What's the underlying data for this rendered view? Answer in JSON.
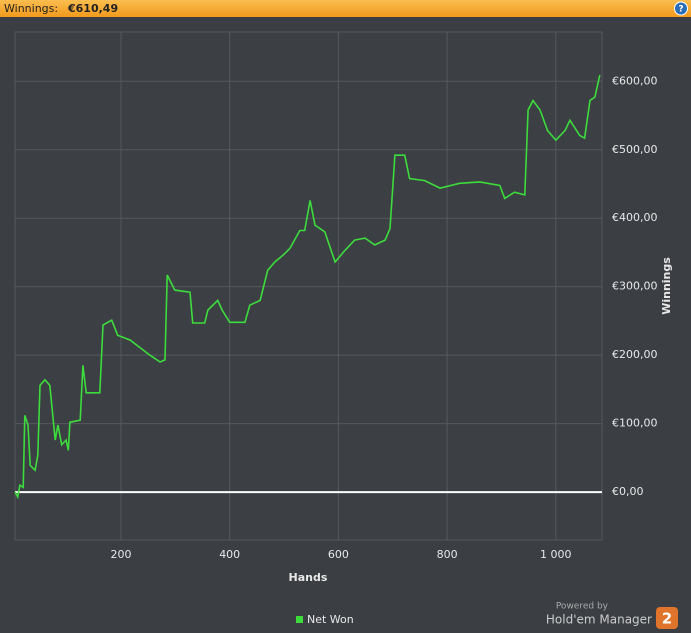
{
  "header": {
    "label": "Winnings:",
    "amount": "€610,49",
    "help_icon": "?"
  },
  "branding": {
    "powered_by": "Powered by",
    "product": "Hold'em Manager",
    "badge": "2"
  },
  "chart_data": {
    "type": "line",
    "x_label": "Hands",
    "y_label": "Winnings",
    "xlim": [
      5,
      1085
    ],
    "ylim": [
      -70,
      672
    ],
    "xticks": [
      200,
      400,
      600,
      800,
      {
        "value": 1000,
        "label": "1 000"
      }
    ],
    "yticks": [
      {
        "value": 0,
        "label": "€0,00"
      },
      {
        "value": 100,
        "label": "€100,00"
      },
      {
        "value": 200,
        "label": "€200,00"
      },
      {
        "value": 300,
        "label": "€300,00"
      },
      {
        "value": 400,
        "label": "€400,00"
      },
      {
        "value": 500,
        "label": "€500,00"
      },
      {
        "value": 600,
        "label": "€600,00"
      }
    ],
    "grid": true,
    "legend": "bottom",
    "x": [
      5,
      10,
      14,
      20,
      23,
      29,
      33,
      42,
      47,
      51,
      60,
      69,
      79,
      84,
      91,
      99,
      103,
      106,
      125,
      130,
      136,
      161,
      167,
      183,
      194,
      217,
      253,
      272,
      281,
      285,
      299,
      327,
      332,
      354,
      360,
      378,
      386,
      400,
      428,
      437,
      456,
      470,
      483,
      498,
      511,
      529,
      538,
      548,
      557,
      575,
      594,
      612,
      630,
      649,
      667,
      686,
      695,
      704,
      722,
      731,
      759,
      787,
      823,
      860,
      897,
      906,
      924,
      943,
      949,
      958,
      971,
      985,
      1000,
      1017,
      1026,
      1044,
      1053,
      1063,
      1072,
      1081
    ],
    "series": [
      {
        "name": "Net Won",
        "color": "#3ddc3d",
        "values": [
          0,
          -7,
          10,
          7,
          112,
          98,
          39,
          32,
          54,
          156,
          164,
          156,
          76,
          98,
          69,
          76,
          61,
          102,
          105,
          185,
          145,
          145,
          244,
          251,
          229,
          222,
          200,
          190,
          193,
          317,
          295,
          292,
          247,
          247,
          266,
          280,
          266,
          248,
          248,
          273,
          280,
          324,
          336,
          346,
          356,
          382,
          382,
          426,
          390,
          380,
          336,
          353,
          368,
          371,
          361,
          368,
          385,
          492,
          492,
          458,
          455,
          444,
          451,
          453,
          448,
          429,
          438,
          434,
          558,
          572,
          558,
          528,
          514,
          528,
          543,
          521,
          517,
          572,
          577,
          609
        ]
      }
    ]
  }
}
